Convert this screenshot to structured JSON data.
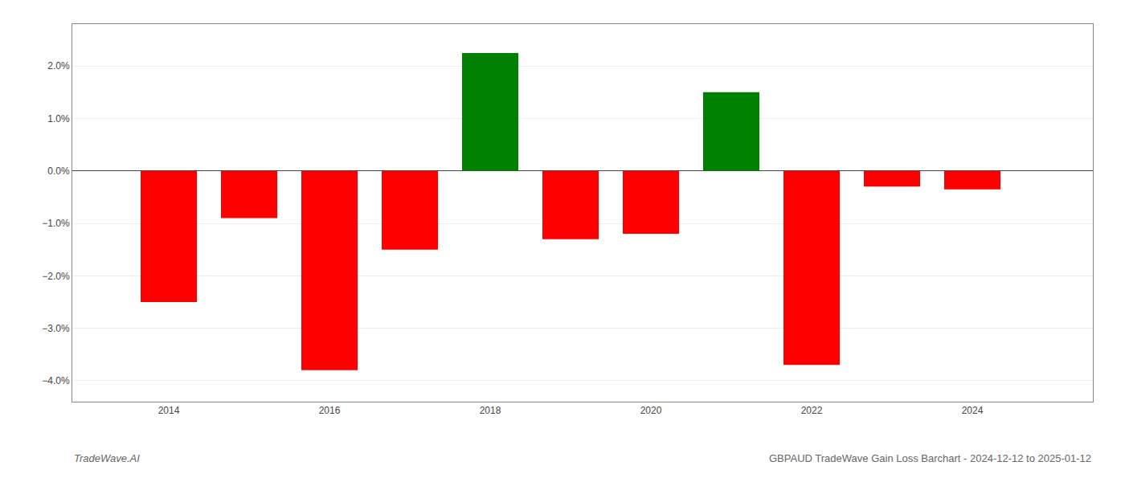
{
  "chart_data": {
    "type": "bar",
    "x": [
      2014,
      2015,
      2016,
      2017,
      2018,
      2019,
      2020,
      2021,
      2022,
      2023,
      2024
    ],
    "values": [
      -0.025,
      -0.009,
      -0.038,
      -0.015,
      0.0225,
      -0.013,
      -0.012,
      0.015,
      -0.037,
      -0.003,
      -0.0035
    ],
    "colors": [
      "red",
      "red",
      "red",
      "red",
      "green",
      "red",
      "red",
      "green",
      "red",
      "red",
      "red"
    ],
    "xlim": [
      2012.8,
      2025.5
    ],
    "xticks": [
      2014,
      2016,
      2018,
      2020,
      2022,
      2024
    ],
    "ylim": [
      -0.044,
      0.028
    ],
    "yticks": [
      {
        "value": -0.04,
        "label": "−4.0%"
      },
      {
        "value": -0.03,
        "label": "−3.0%"
      },
      {
        "value": -0.02,
        "label": "−2.0%"
      },
      {
        "value": -0.01,
        "label": "−1.0%"
      },
      {
        "value": 0.0,
        "label": "0.0%"
      },
      {
        "value": 0.01,
        "label": "1.0%"
      },
      {
        "value": 0.02,
        "label": "2.0%"
      }
    ],
    "grid": true,
    "annotations": [
      "TradeWave.AI",
      "GBPAUD TradeWave Gain Loss Barchart - 2024-12-12 to 2025-01-12"
    ]
  }
}
